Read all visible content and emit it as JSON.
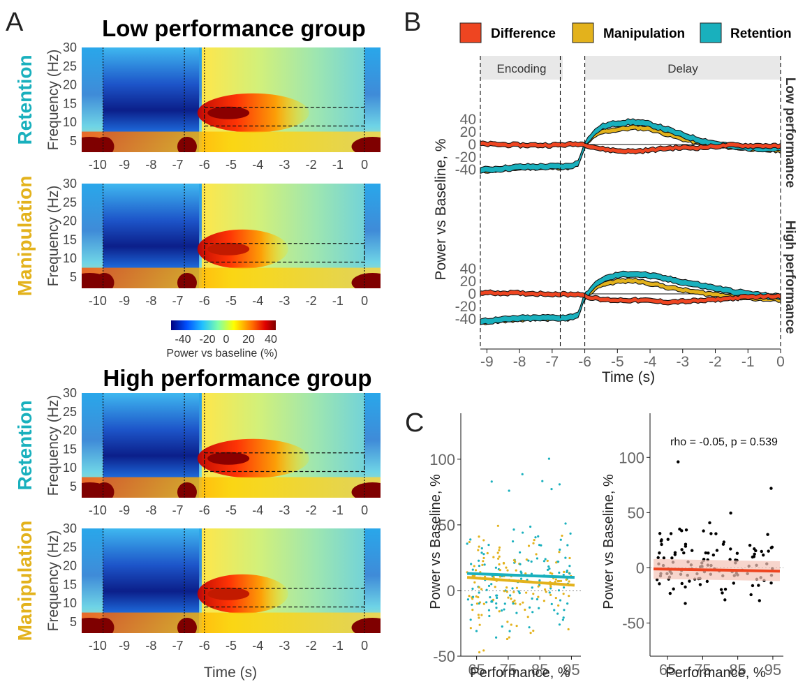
{
  "panels": {
    "a": "A",
    "b": "B",
    "c": "C"
  },
  "colors": {
    "retention": "#19b0bd",
    "manipulation": "#e3b21c",
    "difference": "#ee4521",
    "dark": "#000000"
  },
  "panel_a": {
    "group_titles": [
      "Low performance group",
      "High performance group"
    ],
    "row_labels": [
      "Retention",
      "Manipulation",
      "Retention",
      "Manipulation"
    ],
    "ylabel": "Frequency (Hz)",
    "y_ticks": [
      "30",
      "25",
      "20",
      "15",
      "10",
      "5"
    ],
    "x_ticks": [
      "-10",
      "-9",
      "-8",
      "-7",
      "-6",
      "-5",
      "-4",
      "-3",
      "-2",
      "-1",
      "0"
    ],
    "xlabel": "Time (s)",
    "colorbar": {
      "ticks": [
        "-40",
        "-20",
        "0",
        "20",
        "40"
      ],
      "label": "Power vs baseline (%)"
    }
  },
  "panel_b": {
    "legend": [
      "Difference",
      "Manipulation",
      "Retention"
    ],
    "epochs": [
      "Encoding",
      "Delay"
    ],
    "group_labels": [
      "Low performance",
      "High performance"
    ],
    "ylabel": "Power vs Baseline, %",
    "y_ticks": [
      "40",
      "20",
      "0",
      "-20",
      "-40"
    ],
    "x_ticks": [
      "-9",
      "-8",
      "-7",
      "-6",
      "-5",
      "-4",
      "-3",
      "-2",
      "-1",
      "0"
    ],
    "xlabel": "Time (s)"
  },
  "panel_c": {
    "annotation": "rho = -0.05, p = 0.539",
    "ylabel": "Power vs Baseline, %",
    "y_ticks": [
      "100",
      "50",
      "0",
      "-50"
    ],
    "x_ticks": [
      "65",
      "75",
      "85",
      "95"
    ],
    "xlabel": "Performance, %"
  },
  "chart_data": [
    {
      "type": "heatmap",
      "title": "Low performance group",
      "panels": [
        "Retention",
        "Manipulation"
      ],
      "x_label": "Time (s)",
      "y_label": "Frequency (Hz)",
      "xlim": [
        -10.6,
        0.6
      ],
      "ylim": [
        2,
        30
      ],
      "colorbar": {
        "label": "Power vs baseline (%)",
        "range": [
          -40,
          40
        ]
      }
    },
    {
      "type": "heatmap",
      "title": "High performance group",
      "panels": [
        "Retention",
        "Manipulation"
      ],
      "x_label": "Time (s)",
      "y_label": "Frequency (Hz)",
      "xlim": [
        -10.6,
        0.6
      ],
      "ylim": [
        2,
        30
      ],
      "colorbar": {
        "label": "Power vs baseline (%)",
        "range": [
          -40,
          40
        ]
      }
    },
    {
      "type": "area",
      "group": "Low performance",
      "x_label": "Time (s)",
      "y_label": "Power vs Baseline, %",
      "xlim": [
        -9.2,
        0
      ],
      "ylim": [
        -48,
        48
      ],
      "x": [
        -9.2,
        -8,
        -7,
        -6.5,
        -6.2,
        -6,
        -5.8,
        -5.5,
        -5,
        -4.5,
        -4,
        -3.5,
        -3,
        -2.5,
        -2,
        -1.5,
        -1,
        -0.5,
        0
      ],
      "series": [
        {
          "name": "Retention",
          "values": [
            -41,
            -36,
            -35,
            -35,
            -30,
            0,
            14,
            28,
            34,
            36,
            32,
            24,
            15,
            7,
            1,
            -3,
            -5,
            -6,
            -6
          ]
        },
        {
          "name": "Manipulation",
          "values": [
            -42,
            -37,
            -36,
            -36,
            -31,
            -1,
            10,
            20,
            24,
            27,
            25,
            17,
            9,
            3,
            -1,
            -4,
            -6,
            -8,
            -9
          ]
        },
        {
          "name": "Difference",
          "values": [
            1,
            -1,
            -1,
            0,
            1,
            0,
            -3,
            -7,
            -10,
            -11,
            -9,
            -6,
            -5,
            -5,
            -3,
            -1,
            -2,
            -2,
            -3
          ]
        }
      ]
    },
    {
      "type": "area",
      "group": "High performance",
      "x_label": "Time (s)",
      "y_label": "Power vs Baseline, %",
      "xlim": [
        -9.2,
        0
      ],
      "ylim": [
        -48,
        48
      ],
      "x": [
        -9.2,
        -8,
        -7,
        -6.5,
        -6.2,
        -6,
        -5.8,
        -5.5,
        -5,
        -4.5,
        -4,
        -3.5,
        -3,
        -2.5,
        -2,
        -1.5,
        -1,
        -0.5,
        0
      ],
      "series": [
        {
          "name": "Retention",
          "values": [
            -44,
            -39,
            -38,
            -38,
            -33,
            -4,
            8,
            22,
            30,
            32,
            29,
            24,
            19,
            14,
            9,
            4,
            0,
            -3,
            -5
          ]
        },
        {
          "name": "Manipulation",
          "values": [
            -45,
            -40,
            -39,
            -39,
            -34,
            -5,
            4,
            15,
            20,
            21,
            17,
            11,
            6,
            2,
            -1,
            -4,
            -6,
            -8,
            -9
          ]
        },
        {
          "name": "Difference",
          "values": [
            2,
            1,
            0,
            -1,
            0,
            -3,
            -6,
            -9,
            -10,
            -10,
            -11,
            -13,
            -12,
            -11,
            -9,
            -7,
            -5,
            -4,
            -3
          ]
        }
      ]
    },
    {
      "type": "scatter",
      "x_label": "Performance, %",
      "y_label": "Power vs Baseline, %",
      "xlim": [
        60,
        98
      ],
      "ylim": [
        -50,
        135
      ],
      "series": [
        {
          "name": "Retention",
          "fit": {
            "x": [
              62,
              96
            ],
            "y": [
              13,
              10
            ]
          }
        },
        {
          "name": "Manipulation",
          "fit": {
            "x": [
              62,
              96
            ],
            "y": [
              10,
              4
            ]
          }
        }
      ]
    },
    {
      "type": "scatter",
      "annotation": "rho = -0.05, p = 0.539",
      "x_label": "Performance, %",
      "y_label": "Power vs Baseline, %",
      "xlim": [
        60,
        98
      ],
      "ylim": [
        -80,
        140
      ],
      "fit": {
        "x": [
          61,
          97
        ],
        "y": [
          -1,
          -3
        ]
      }
    }
  ]
}
